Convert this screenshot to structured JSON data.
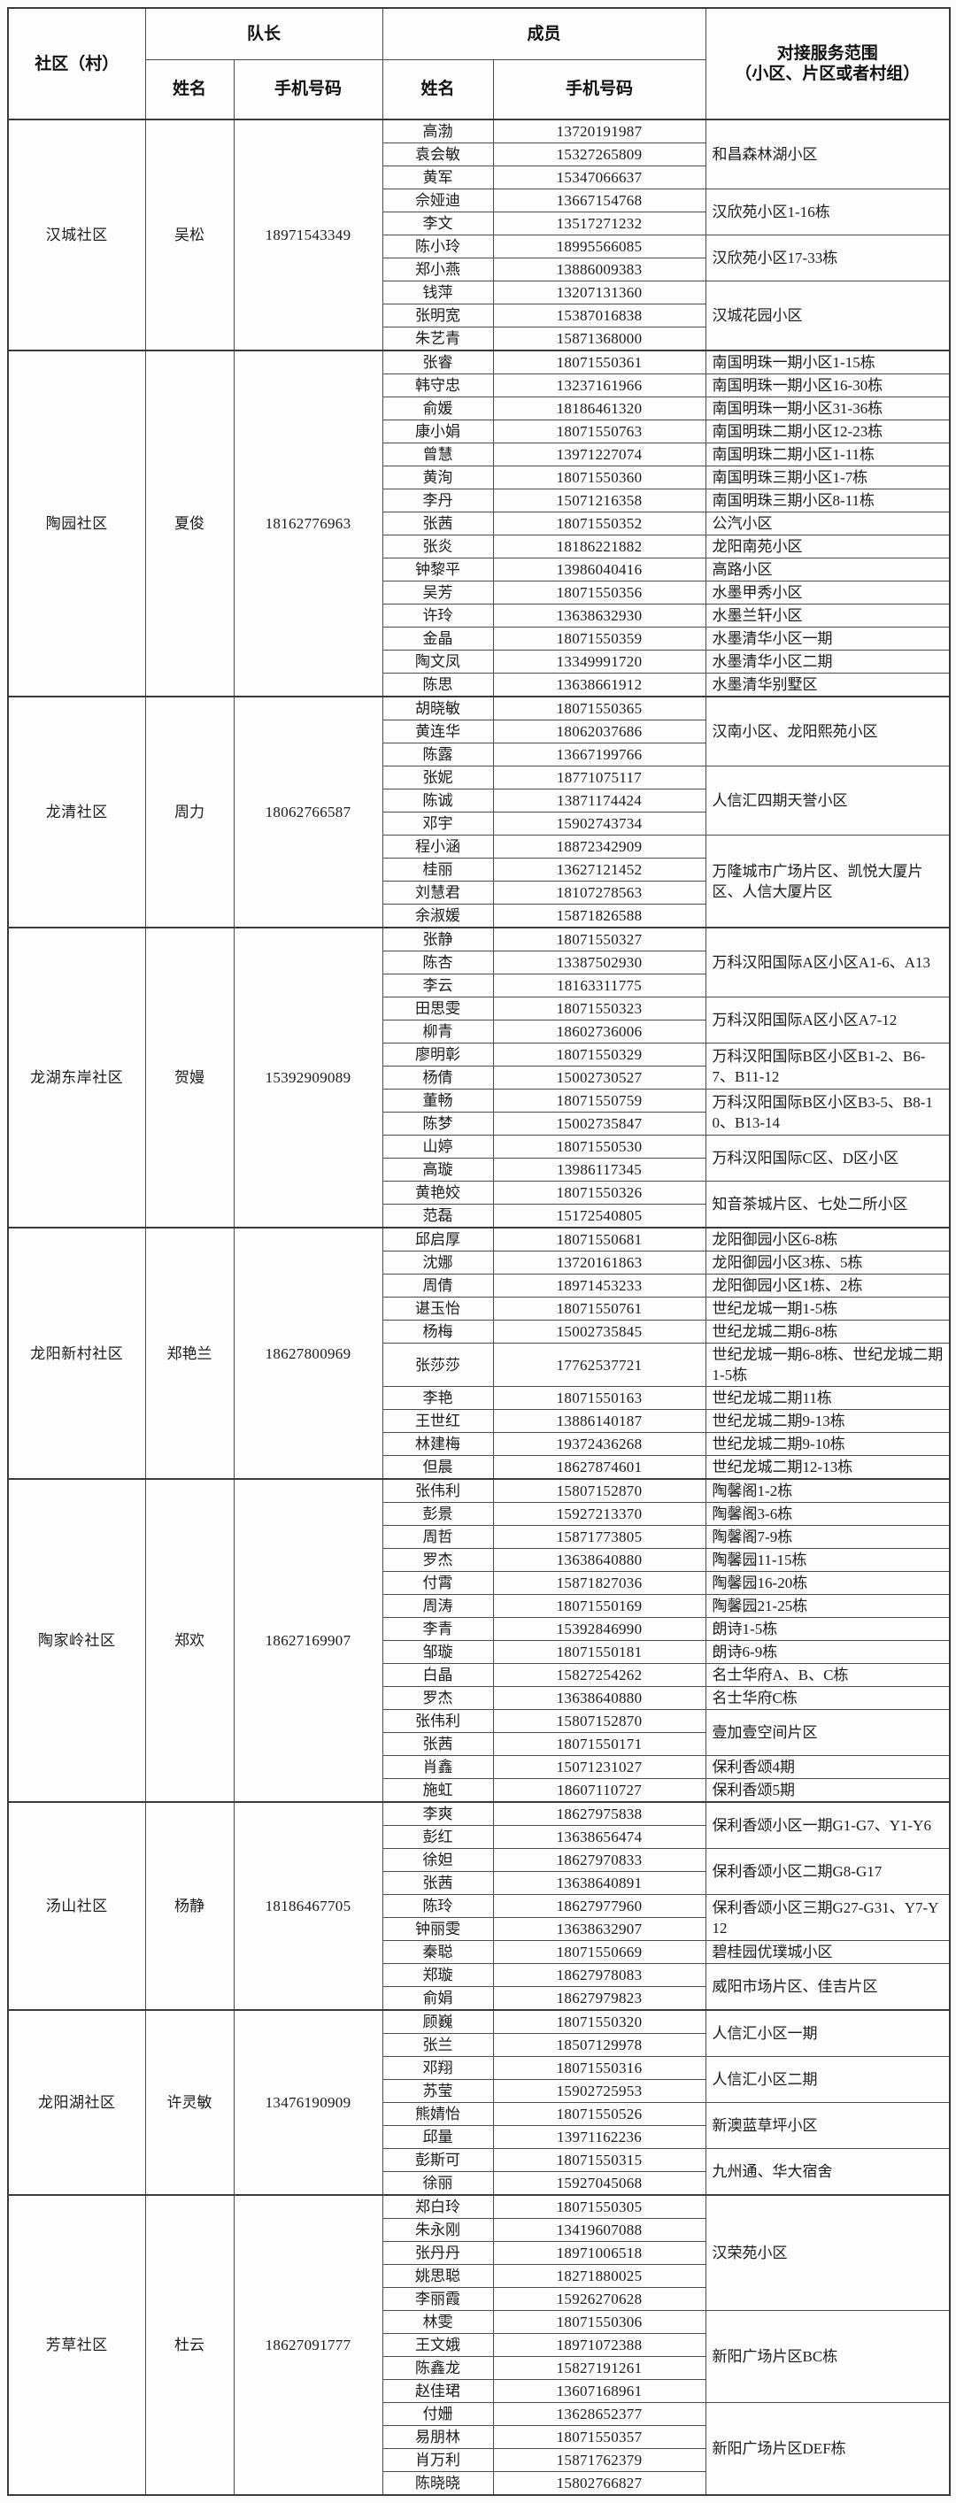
{
  "table": {
    "header": {
      "community": "社区（村）",
      "leader_group": "队长",
      "member_group": "成员",
      "leader_name": "姓名",
      "leader_phone": "手机号码",
      "member_name": "姓名",
      "member_phone": "手机号码",
      "scope_line1": "对接服务范围",
      "scope_line2": "（小区、片区或者村组）"
    },
    "sections": [
      {
        "community": "汉城社区",
        "leader": {
          "name": "吴松",
          "phone": "18971543349"
        },
        "groups": [
          {
            "scope": "和昌森林湖小区",
            "members": [
              {
                "name": "高渤",
                "phone": "13720191987"
              },
              {
                "name": "袁会敏",
                "phone": "15327265809"
              },
              {
                "name": "黄军",
                "phone": "15347066637"
              }
            ]
          },
          {
            "scope": "汉欣苑小区1-16栋",
            "members": [
              {
                "name": "佘娅迪",
                "phone": "13667154768"
              },
              {
                "name": "李文",
                "phone": "13517271232"
              }
            ]
          },
          {
            "scope": "汉欣苑小区17-33栋",
            "members": [
              {
                "name": "陈小玲",
                "phone": "18995566085"
              },
              {
                "name": "郑小燕",
                "phone": "13886009383"
              }
            ]
          },
          {
            "scope": "汉城花园小区",
            "members": [
              {
                "name": "钱萍",
                "phone": "13207131360"
              },
              {
                "name": "张明宽",
                "phone": "15387016838"
              },
              {
                "name": "朱艺青",
                "phone": "15871368000"
              }
            ]
          }
        ]
      },
      {
        "community": "陶园社区",
        "leader": {
          "name": "夏俊",
          "phone": "18162776963"
        },
        "groups": [
          {
            "scope": "南国明珠一期小区1-15栋",
            "members": [
              {
                "name": "张睿",
                "phone": "18071550361"
              }
            ]
          },
          {
            "scope": "南国明珠一期小区16-30栋",
            "members": [
              {
                "name": "韩守忠",
                "phone": "13237161966"
              }
            ]
          },
          {
            "scope": "南国明珠一期小区31-36栋",
            "members": [
              {
                "name": "俞媛",
                "phone": "18186461320"
              }
            ]
          },
          {
            "scope": "南国明珠二期小区12-23栋",
            "members": [
              {
                "name": "康小娟",
                "phone": "18071550763"
              }
            ]
          },
          {
            "scope": "南国明珠二期小区1-11栋",
            "members": [
              {
                "name": "曾慧",
                "phone": "13971227074"
              }
            ]
          },
          {
            "scope": "南国明珠三期小区1-7栋",
            "members": [
              {
                "name": "黄洵",
                "phone": "18071550360"
              }
            ]
          },
          {
            "scope": "南国明珠三期小区8-11栋",
            "members": [
              {
                "name": "李丹",
                "phone": "15071216358"
              }
            ]
          },
          {
            "scope": "公汽小区",
            "members": [
              {
                "name": "张茜",
                "phone": "18071550352"
              }
            ]
          },
          {
            "scope": "龙阳南苑小区",
            "members": [
              {
                "name": "张炎",
                "phone": "18186221882"
              }
            ]
          },
          {
            "scope": "高路小区",
            "members": [
              {
                "name": "钟黎平",
                "phone": "13986040416"
              }
            ]
          },
          {
            "scope": "水墨甲秀小区",
            "members": [
              {
                "name": "吴芳",
                "phone": "18071550356"
              }
            ]
          },
          {
            "scope": "水墨兰轩小区",
            "members": [
              {
                "name": "许玲",
                "phone": "13638632930"
              }
            ]
          },
          {
            "scope": "水墨清华小区一期",
            "members": [
              {
                "name": "金晶",
                "phone": "18071550359"
              }
            ]
          },
          {
            "scope": "水墨清华小区二期",
            "members": [
              {
                "name": "陶文凤",
                "phone": "13349991720"
              }
            ]
          },
          {
            "scope": "水墨清华别墅区",
            "members": [
              {
                "name": "陈思",
                "phone": "13638661912"
              }
            ]
          }
        ]
      },
      {
        "community": "龙清社区",
        "leader": {
          "name": "周力",
          "phone": "18062766587"
        },
        "groups": [
          {
            "scope": "汉南小区、龙阳熙苑小区",
            "members": [
              {
                "name": "胡晓敏",
                "phone": "18071550365"
              },
              {
                "name": "黄连华",
                "phone": "18062037686"
              },
              {
                "name": "陈露",
                "phone": "13667199766"
              }
            ]
          },
          {
            "scope": "人信汇四期天誉小区",
            "members": [
              {
                "name": "张妮",
                "phone": "18771075117"
              },
              {
                "name": "陈诚",
                "phone": "13871174424"
              },
              {
                "name": "邓宇",
                "phone": "15902743734"
              }
            ]
          },
          {
            "scope": "万隆城市广场片区、凯悦大厦片区、人信大厦片区",
            "members": [
              {
                "name": "程小涵",
                "phone": "18872342909"
              },
              {
                "name": "桂丽",
                "phone": "13627121452"
              },
              {
                "name": "刘慧君",
                "phone": "18107278563"
              },
              {
                "name": "余淑媛",
                "phone": "15871826588"
              }
            ]
          }
        ]
      },
      {
        "community": "龙湖东岸社区",
        "leader": {
          "name": "贺嫚",
          "phone": "15392909089"
        },
        "groups": [
          {
            "scope": "万科汉阳国际A区小区A1-6、A13",
            "members": [
              {
                "name": "张静",
                "phone": "18071550327"
              },
              {
                "name": "陈杏",
                "phone": "13387502930"
              },
              {
                "name": "李云",
                "phone": "18163311775"
              }
            ]
          },
          {
            "scope": "万科汉阳国际A区小区A7-12",
            "members": [
              {
                "name": "田思雯",
                "phone": "18071550323"
              },
              {
                "name": "柳青",
                "phone": "18602736006"
              }
            ]
          },
          {
            "scope": "万科汉阳国际B区小区B1-2、B6-7、B11-12",
            "members": [
              {
                "name": "廖明彰",
                "phone": "18071550329"
              },
              {
                "name": "杨倩",
                "phone": "15002730527"
              }
            ]
          },
          {
            "scope": "万科汉阳国际B区小区B3-5、B8-10、B13-14",
            "members": [
              {
                "name": "董畅",
                "phone": "18071550759"
              },
              {
                "name": "陈梦",
                "phone": "15002735847"
              }
            ]
          },
          {
            "scope": "万科汉阳国际C区、D区小区",
            "members": [
              {
                "name": "山婷",
                "phone": "18071550530"
              },
              {
                "name": "高璇",
                "phone": "13986117345"
              }
            ]
          },
          {
            "scope": "知音茶城片区、七处二所小区",
            "members": [
              {
                "name": "黄艳姣",
                "phone": "18071550326"
              },
              {
                "name": "范磊",
                "phone": "15172540805"
              }
            ]
          }
        ]
      },
      {
        "community": "龙阳新村社区",
        "leader": {
          "name": "郑艳兰",
          "phone": "18627800969"
        },
        "groups": [
          {
            "scope": "龙阳御园小区6-8栋",
            "members": [
              {
                "name": "邱启厚",
                "phone": "18071550681"
              }
            ]
          },
          {
            "scope": "龙阳御园小区3栋、5栋",
            "members": [
              {
                "name": "沈娜",
                "phone": "13720161863"
              }
            ]
          },
          {
            "scope": "龙阳御园小区1栋、2栋",
            "members": [
              {
                "name": "周倩",
                "phone": "18971453233"
              }
            ]
          },
          {
            "scope": "世纪龙城一期1-5栋",
            "members": [
              {
                "name": "谌玉怡",
                "phone": "18071550761"
              }
            ]
          },
          {
            "scope": "世纪龙城二期6-8栋",
            "members": [
              {
                "name": "杨梅",
                "phone": "15002735845"
              }
            ]
          },
          {
            "scope": "世纪龙城一期6-8栋、世纪龙城二期1-5栋",
            "members": [
              {
                "name": "张莎莎",
                "phone": "17762537721"
              }
            ]
          },
          {
            "scope": "世纪龙城二期11栋",
            "members": [
              {
                "name": "李艳",
                "phone": "18071550163"
              }
            ]
          },
          {
            "scope": "世纪龙城二期9-13栋",
            "members": [
              {
                "name": "王世红",
                "phone": "13886140187"
              }
            ]
          },
          {
            "scope": "世纪龙城二期9-10栋",
            "members": [
              {
                "name": "林建梅",
                "phone": "19372436268"
              }
            ]
          },
          {
            "scope": "世纪龙城二期12-13栋",
            "members": [
              {
                "name": "但晨",
                "phone": "18627874601"
              }
            ]
          }
        ]
      },
      {
        "community": "陶家岭社区",
        "leader": {
          "name": "郑欢",
          "phone": "18627169907"
        },
        "groups": [
          {
            "scope": "陶馨阁1-2栋",
            "members": [
              {
                "name": "张伟利",
                "phone": "15807152870"
              }
            ]
          },
          {
            "scope": "陶馨阁3-6栋",
            "members": [
              {
                "name": "彭景",
                "phone": "15927213370"
              }
            ]
          },
          {
            "scope": "陶馨阁7-9栋",
            "members": [
              {
                "name": "周哲",
                "phone": "15871773805"
              }
            ]
          },
          {
            "scope": "陶馨园11-15栋",
            "members": [
              {
                "name": "罗杰",
                "phone": "13638640880"
              }
            ]
          },
          {
            "scope": "陶馨园16-20栋",
            "members": [
              {
                "name": "付霄",
                "phone": "15871827036"
              }
            ]
          },
          {
            "scope": "陶馨园21-25栋",
            "members": [
              {
                "name": "周涛",
                "phone": "18071550169"
              }
            ]
          },
          {
            "scope": "朗诗1-5栋",
            "members": [
              {
                "name": "李青",
                "phone": "15392846990"
              }
            ]
          },
          {
            "scope": "朗诗6-9栋",
            "members": [
              {
                "name": "邹璇",
                "phone": "18071550181"
              }
            ]
          },
          {
            "scope": "名士华府A、B、C栋",
            "members": [
              {
                "name": "白晶",
                "phone": "15827254262"
              }
            ]
          },
          {
            "scope": "名士华府C栋",
            "members": [
              {
                "name": "罗杰",
                "phone": "13638640880"
              }
            ]
          },
          {
            "scope": "壹加壹空间片区",
            "members": [
              {
                "name": "张伟利",
                "phone": "15807152870"
              },
              {
                "name": "张茜",
                "phone": "18071550171"
              }
            ]
          },
          {
            "scope": "保利香颂4期",
            "members": [
              {
                "name": "肖鑫",
                "phone": "15071231027"
              }
            ]
          },
          {
            "scope": "保利香颂5期",
            "members": [
              {
                "name": "施虹",
                "phone": "18607110727"
              }
            ]
          }
        ]
      },
      {
        "community": "汤山社区",
        "leader": {
          "name": "杨静",
          "phone": "18186467705"
        },
        "groups": [
          {
            "scope": "保利香颂小区一期G1-G7、Y1-Y6",
            "members": [
              {
                "name": "李爽",
                "phone": "18627975838"
              },
              {
                "name": "彭红",
                "phone": "13638656474"
              }
            ]
          },
          {
            "scope": "保利香颂小区二期G8-G17",
            "members": [
              {
                "name": "徐妲",
                "phone": "18627970833"
              },
              {
                "name": "张茜",
                "phone": "13638640891"
              }
            ]
          },
          {
            "scope": "保利香颂小区三期G27-G31、Y7-Y12",
            "members": [
              {
                "name": "陈玲",
                "phone": "18627977960"
              },
              {
                "name": "钟丽雯",
                "phone": "13638632907"
              }
            ]
          },
          {
            "scope": "碧桂园优璞城小区",
            "members": [
              {
                "name": "秦聪",
                "phone": "18071550669"
              }
            ]
          },
          {
            "scope": "威阳市场片区、佳吉片区",
            "members": [
              {
                "name": "郑璇",
                "phone": "18627978083"
              },
              {
                "name": "俞娟",
                "phone": "18627979823"
              }
            ]
          }
        ]
      },
      {
        "community": "龙阳湖社区",
        "leader": {
          "name": "许灵敏",
          "phone": "13476190909"
        },
        "groups": [
          {
            "scope": "人信汇小区一期",
            "members": [
              {
                "name": "顾巍",
                "phone": "18071550320"
              },
              {
                "name": "张兰",
                "phone": "18507129978"
              }
            ]
          },
          {
            "scope": "人信汇小区二期",
            "members": [
              {
                "name": "邓翔",
                "phone": "18071550316"
              },
              {
                "name": "苏莹",
                "phone": "15902725953"
              }
            ]
          },
          {
            "scope": "新澳蓝草坪小区",
            "members": [
              {
                "name": "熊婧怡",
                "phone": "18071550526"
              },
              {
                "name": "邱量",
                "phone": "13971162236"
              }
            ]
          },
          {
            "scope": "九州通、华大宿舍",
            "members": [
              {
                "name": "彭斯可",
                "phone": "18071550315"
              },
              {
                "name": "徐丽",
                "phone": "15927045068"
              }
            ]
          }
        ]
      },
      {
        "community": "芳草社区",
        "leader": {
          "name": "杜云",
          "phone": "18627091777"
        },
        "groups": [
          {
            "scope": "汉荣苑小区",
            "members": [
              {
                "name": "郑白玲",
                "phone": "18071550305"
              },
              {
                "name": "朱永刚",
                "phone": "13419607088"
              },
              {
                "name": "张丹丹",
                "phone": "18971006518"
              },
              {
                "name": "姚思聪",
                "phone": "18271880025"
              },
              {
                "name": "李丽霞",
                "phone": "15926270628"
              }
            ]
          },
          {
            "scope": "新阳广场片区BC栋",
            "members": [
              {
                "name": "林雯",
                "phone": "18071550306"
              },
              {
                "name": "王文娥",
                "phone": "18971072388"
              },
              {
                "name": "陈鑫龙",
                "phone": "15827191261"
              },
              {
                "name": "赵佳珺",
                "phone": "13607168961"
              }
            ]
          },
          {
            "scope": "新阳广场片区DEF栋",
            "members": [
              {
                "name": "付姗",
                "phone": "13628652377"
              },
              {
                "name": "易朋林",
                "phone": "18071550357"
              },
              {
                "name": "肖万利",
                "phone": "15871762379"
              },
              {
                "name": "陈晓晓",
                "phone": "15802766827"
              }
            ]
          }
        ]
      }
    ]
  }
}
